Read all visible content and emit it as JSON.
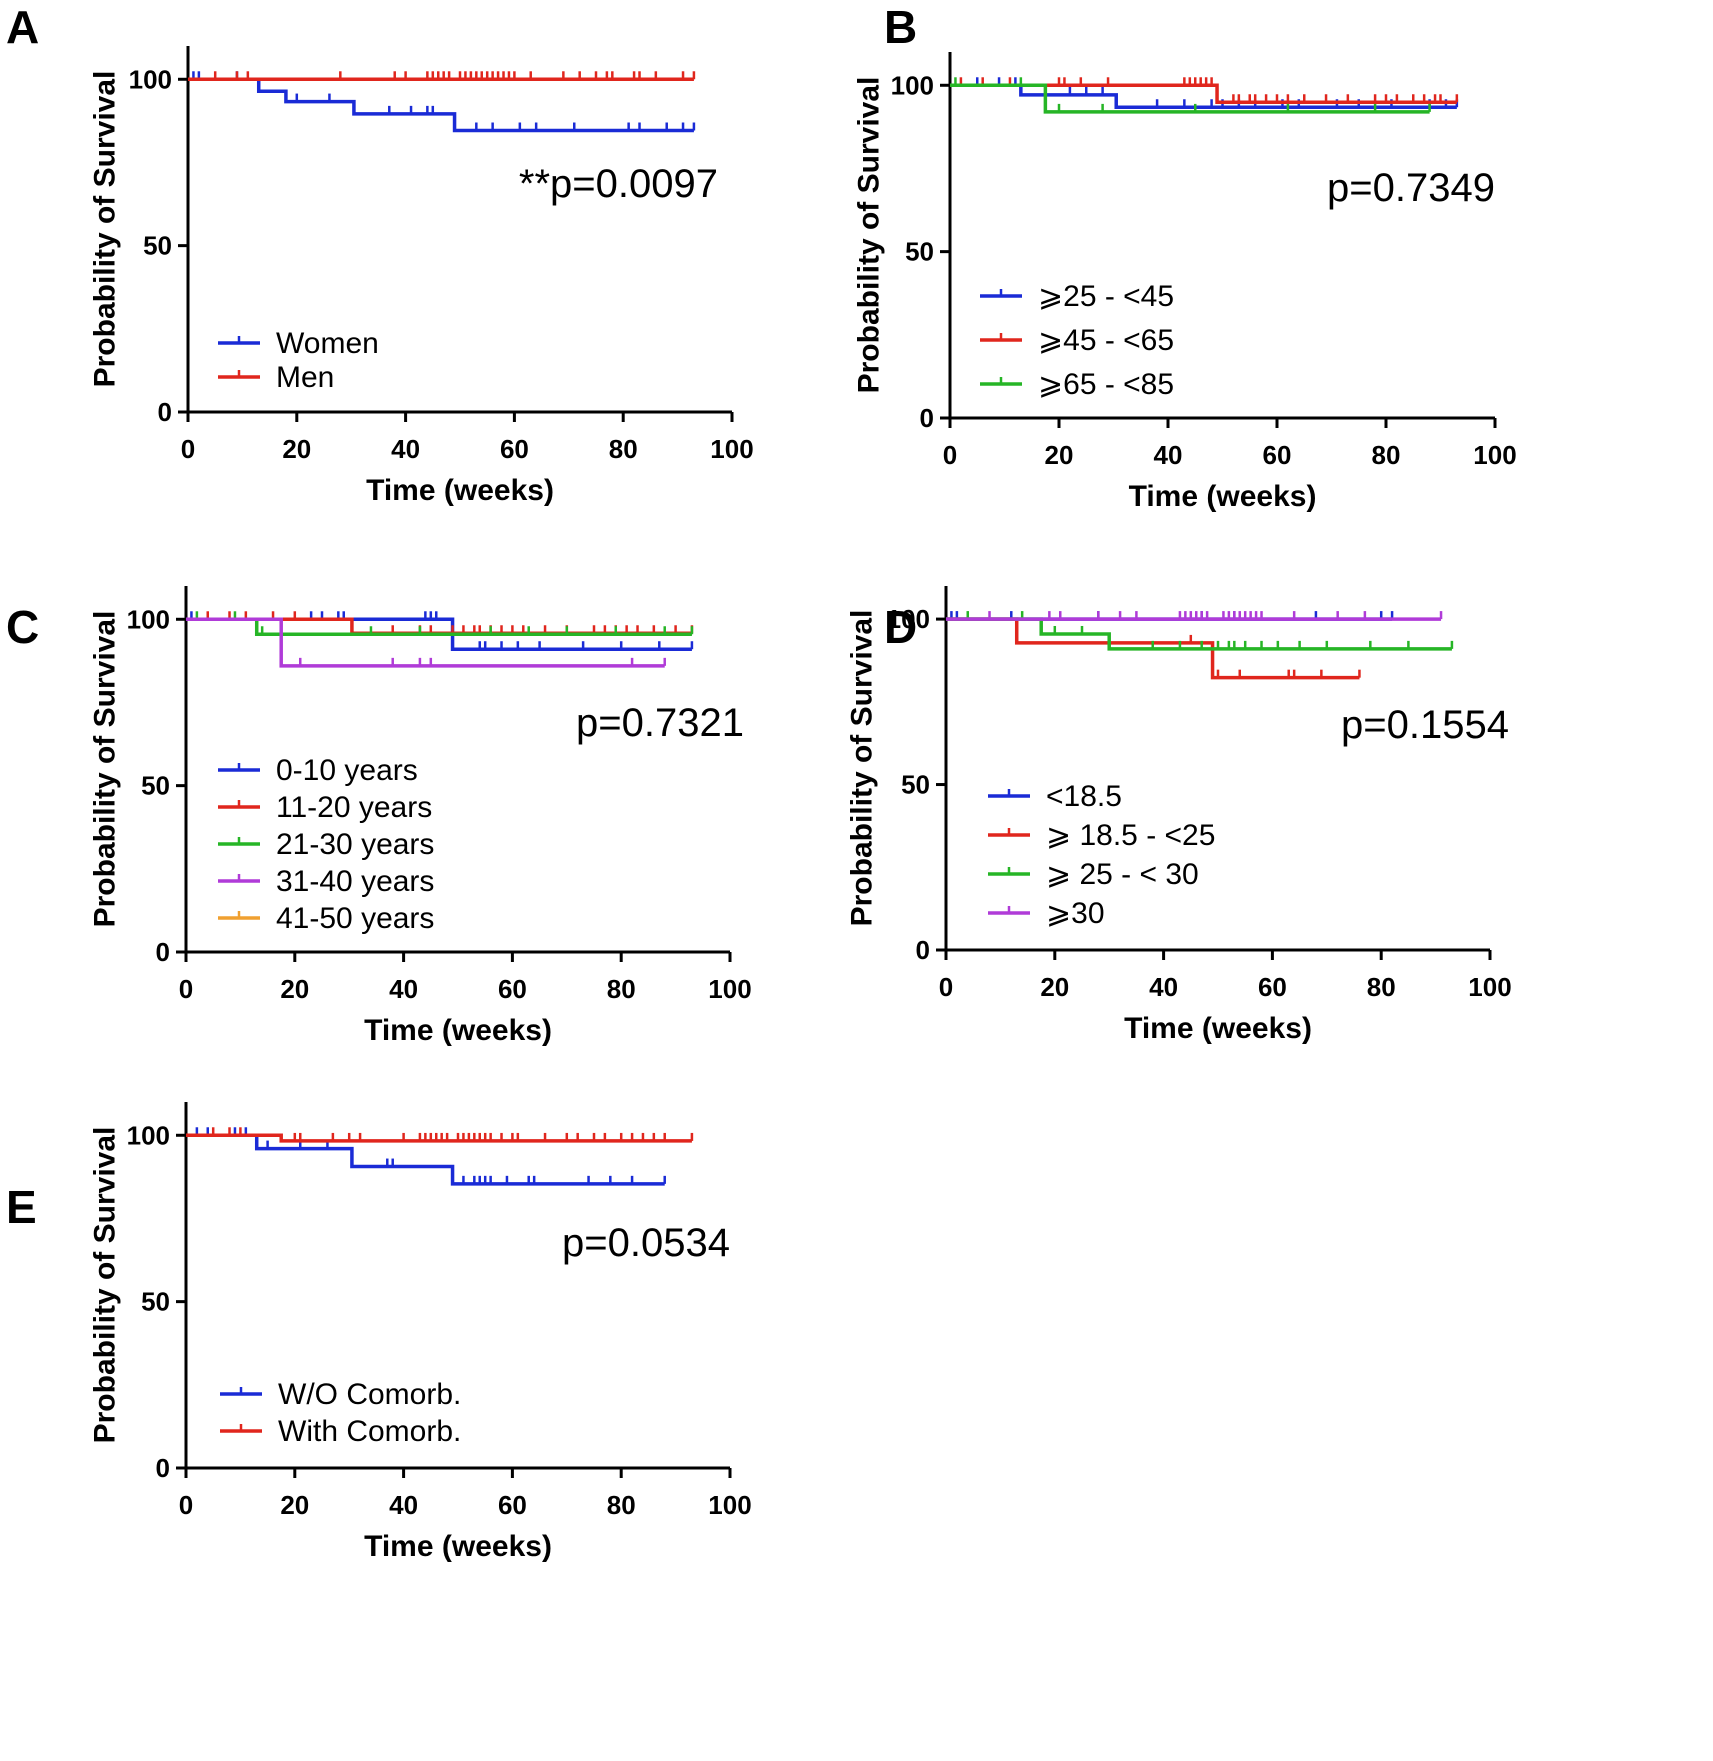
{
  "figure": {
    "panels": [
      {
        "letter": "A"
      },
      {
        "letter": "B"
      },
      {
        "letter": "C"
      },
      {
        "letter": "D"
      },
      {
        "letter": "E"
      }
    ]
  },
  "chart_data": [
    {
      "panel": "A",
      "type": "line",
      "title": "",
      "xlabel": "Time (weeks)",
      "ylabel": "Probability of Survival",
      "xlim": [
        0,
        100
      ],
      "ylim": [
        0,
        110
      ],
      "xticks": [
        0,
        20,
        40,
        60,
        80,
        100
      ],
      "yticks": [
        0,
        50,
        100
      ],
      "annotation": "**p=0.0097",
      "legend_position": "bottom-left",
      "series": [
        {
          "name": "Women",
          "color": "#1a2bd6",
          "steps": [
            [
              0,
              100
            ],
            [
              13,
              96.4
            ],
            [
              18,
              93.3
            ],
            [
              30.5,
              89.6
            ],
            [
              49,
              84.6
            ],
            [
              93,
              84.6
            ]
          ],
          "censors": [
            1,
            2,
            9,
            20,
            26,
            37,
            41,
            44,
            45,
            53,
            56,
            61,
            64,
            71,
            81,
            83,
            88,
            91,
            93
          ]
        },
        {
          "name": "Men",
          "color": "#e0261d",
          "steps": [
            [
              0,
              100
            ],
            [
              93,
              100
            ]
          ],
          "censors": [
            5,
            9,
            11,
            28,
            38,
            40,
            44,
            45,
            46,
            47,
            48,
            50,
            51,
            52,
            53,
            54,
            55,
            56,
            57,
            58,
            59,
            60,
            63,
            69,
            72,
            75,
            77,
            78,
            82,
            83,
            86,
            91,
            93
          ]
        }
      ]
    },
    {
      "panel": "B",
      "type": "line",
      "title": "",
      "xlabel": "Time (weeks)",
      "ylabel": "Probability of Survival",
      "xlim": [
        0,
        100
      ],
      "ylim": [
        0,
        110
      ],
      "xticks": [
        0,
        20,
        40,
        60,
        80,
        100
      ],
      "yticks": [
        0,
        50,
        100
      ],
      "annotation": "p=0.7349",
      "legend_position": "bottom-left",
      "series": [
        {
          "name": "⩾25 - <45",
          "color": "#1a2bd6",
          "steps": [
            [
              0,
              100
            ],
            [
              13,
              97.1
            ],
            [
              30.5,
              93.4
            ],
            [
              93,
              93.4
            ]
          ],
          "censors": [
            5,
            9,
            12,
            22,
            25,
            28,
            38,
            43,
            48,
            50,
            53,
            56,
            61,
            64,
            71,
            75,
            81,
            88,
            91,
            93
          ]
        },
        {
          "name": "⩾45 - <65",
          "color": "#e0261d",
          "steps": [
            [
              0,
              100
            ],
            [
              49,
              94.9
            ],
            [
              93,
              94.9
            ]
          ],
          "censors": [
            2,
            6,
            11,
            20,
            21,
            24,
            29,
            43,
            44,
            45,
            46,
            47,
            48,
            52,
            53,
            55,
            56,
            58,
            60,
            62,
            65,
            69,
            73,
            78,
            80,
            82,
            85,
            87,
            89,
            90,
            93
          ]
        },
        {
          "name": "⩾65 - <85",
          "color": "#26b526",
          "steps": [
            [
              0,
              100
            ],
            [
              17.5,
              92
            ],
            [
              88,
              92
            ]
          ],
          "censors": [
            1,
            13,
            20,
            28,
            45,
            62,
            78,
            88
          ]
        }
      ]
    },
    {
      "panel": "C",
      "type": "line",
      "title": "",
      "xlabel": "Time (weeks)",
      "ylabel": "Probability of Survival",
      "xlim": [
        0,
        100
      ],
      "ylim": [
        0,
        110
      ],
      "xticks": [
        0,
        20,
        40,
        60,
        80,
        100
      ],
      "yticks": [
        0,
        50,
        100
      ],
      "annotation": "p=0.7321",
      "legend_position": "bottom-left",
      "series": [
        {
          "name": "0-10 years",
          "color": "#1a2bd6",
          "steps": [
            [
              0,
              100
            ],
            [
              49,
              91
            ],
            [
              93,
              91
            ]
          ],
          "censors": [
            1,
            23,
            25,
            28,
            29,
            44,
            45,
            46,
            54,
            55,
            58,
            61,
            65,
            73,
            80,
            87,
            93
          ]
        },
        {
          "name": "11-20 years",
          "color": "#e0261d",
          "steps": [
            [
              0,
              100
            ],
            [
              30.5,
              95.8
            ],
            [
              93,
              95.8
            ]
          ],
          "censors": [
            4,
            8,
            11,
            16,
            20,
            38,
            43,
            45,
            49,
            51,
            53,
            54,
            56,
            58,
            60,
            62,
            66,
            70,
            75,
            77,
            79,
            81,
            83,
            86,
            90,
            93
          ]
        },
        {
          "name": "21-30 years",
          "color": "#26b526",
          "steps": [
            [
              0,
              100
            ],
            [
              13,
              95.5
            ],
            [
              93,
              95.5
            ]
          ],
          "censors": [
            2,
            9,
            14,
            34,
            43,
            56,
            63,
            70,
            79,
            88,
            93
          ]
        },
        {
          "name": "31-40 years",
          "color": "#b03bd8",
          "steps": [
            [
              0,
              100
            ],
            [
              17.5,
              86
            ],
            [
              88,
              86
            ]
          ],
          "censors": [
            21,
            38,
            43,
            45,
            82,
            88
          ]
        },
        {
          "name": "41-50 years",
          "color": "#f0a030",
          "steps": [],
          "censors": []
        }
      ]
    },
    {
      "panel": "D",
      "type": "line",
      "title": "",
      "xlabel": "Time (weeks)",
      "ylabel": "Probability of Survival",
      "xlim": [
        0,
        100
      ],
      "ylim": [
        0,
        110
      ],
      "xticks": [
        0,
        20,
        40,
        60,
        80,
        100
      ],
      "yticks": [
        0,
        50,
        100
      ],
      "annotation": "p=0.1554",
      "legend_position": "bottom-left",
      "series": [
        {
          "name": "<18.5",
          "color": "#1a2bd6",
          "steps": [
            [
              0,
              100
            ],
            [
              82,
              100
            ]
          ],
          "censors": [
            1,
            2,
            12,
            28,
            47,
            53,
            68,
            80,
            82
          ]
        },
        {
          "name": "⩾ 18.5 - <25",
          "color": "#e0261d",
          "steps": [
            [
              0,
              100
            ],
            [
              13,
              92.8
            ],
            [
              49,
              82.3
            ],
            [
              76,
              82.3
            ]
          ],
          "censors": [
            45,
            50,
            54,
            63,
            64,
            69,
            76
          ]
        },
        {
          "name": "⩾ 25 - < 30",
          "color": "#26b526",
          "steps": [
            [
              0,
              100
            ],
            [
              17.5,
              95.5
            ],
            [
              30,
              91
            ],
            [
              93,
              91
            ]
          ],
          "censors": [
            4,
            14,
            20,
            25,
            38,
            43,
            47,
            50,
            52,
            53,
            55,
            58,
            61,
            65,
            70,
            78,
            85,
            93
          ]
        },
        {
          "name": "⩾30",
          "color": "#b03bd8",
          "steps": [
            [
              0,
              100
            ],
            [
              91,
              100
            ]
          ],
          "censors": [
            8,
            19,
            21,
            28,
            32,
            35,
            43,
            44,
            45,
            46,
            47,
            48,
            51,
            52,
            53,
            54,
            55,
            56,
            57,
            58,
            64,
            72,
            77,
            91
          ]
        }
      ]
    },
    {
      "panel": "E",
      "type": "line",
      "title": "",
      "xlabel": "Time (weeks)",
      "ylabel": "Probability of Survival",
      "xlim": [
        0,
        100
      ],
      "ylim": [
        0,
        110
      ],
      "xticks": [
        0,
        20,
        40,
        60,
        80,
        100
      ],
      "yticks": [
        0,
        50,
        100
      ],
      "annotation": "p=0.0534",
      "legend_position": "bottom-left",
      "series": [
        {
          "name": "W/O Comorb.",
          "color": "#1a2bd6",
          "steps": [
            [
              0,
              100
            ],
            [
              13,
              96
            ],
            [
              30.5,
              90.6
            ],
            [
              49,
              85.4
            ],
            [
              88,
              85.4
            ]
          ],
          "censors": [
            2,
            4,
            9,
            11,
            15,
            21,
            26,
            37,
            38,
            51,
            53,
            54,
            55,
            56,
            59,
            63,
            64,
            74,
            78,
            82,
            88
          ]
        },
        {
          "name": "With Comorb.",
          "color": "#e0261d",
          "steps": [
            [
              0,
              100
            ],
            [
              17.5,
              98.3
            ],
            [
              93,
              98.3
            ]
          ],
          "censors": [
            5,
            8,
            10,
            20,
            21,
            27,
            30,
            32,
            40,
            43,
            44,
            45,
            46,
            47,
            48,
            50,
            51,
            52,
            53,
            54,
            55,
            56,
            58,
            60,
            61,
            66,
            70,
            72,
            75,
            77,
            80,
            82,
            84,
            86,
            88,
            93
          ]
        }
      ]
    }
  ]
}
